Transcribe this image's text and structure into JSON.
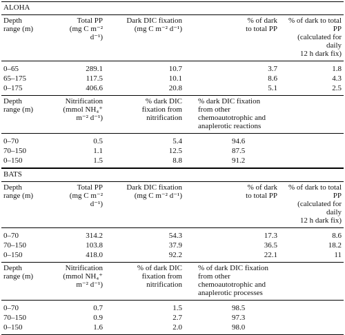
{
  "sections": [
    {
      "title": "ALOHA",
      "tables": [
        {
          "header": [
            "Depth\nrange (m)",
            "Total PP\n(mg C m⁻² d⁻¹)",
            "Dark DIC fixation\n(mg C m⁻² d⁻¹)",
            "% of dark\nto total PP",
            "% of dark to total PP\n(calculated for daily\n12 h dark fix)"
          ],
          "rows": [
            [
              "0–65",
              "289.1",
              "10.7",
              "3.7",
              "1.8"
            ],
            [
              "65–175",
              "117.5",
              "10.1",
              "8.6",
              "4.3"
            ],
            [
              "0–175",
              "406.6",
              "20.8",
              "5.1",
              "2.5"
            ]
          ]
        },
        {
          "header": [
            "Depth\nrange (m)",
            "Nitrification\n(mmol NH₄⁺ m⁻² d⁻¹)",
            "% dark DIC\nfixation from\nnitrification",
            "% dark DIC fixation\nfrom other\nchemoautotrophic and\nanaplerotic reactions"
          ],
          "rows": [
            [
              "0–70",
              "0.5",
              "5.4",
              "94.6"
            ],
            [
              "70–150",
              "1.1",
              "12.5",
              "87.5"
            ],
            [
              "0–150",
              "1.5",
              "8.8",
              "91.2"
            ]
          ]
        }
      ]
    },
    {
      "title": "BATS",
      "tables": [
        {
          "header": [
            "Depth\nrange (m)",
            "Total PP\n(mg C m⁻² d⁻¹)",
            "Dark DIC fixation\n(mg C m⁻² d⁻¹)",
            "% of dark\nto total PP",
            "% of dark to total PP\n(calculated for daily\n12 h dark fix)"
          ],
          "rows": [
            [
              "0–70",
              "314.2",
              "54.3",
              "17.3",
              "8.6"
            ],
            [
              "70–150",
              "103.8",
              "37.9",
              "36.5",
              "18.2"
            ],
            [
              "0–150",
              "418.0",
              "92.2",
              "22.1",
              "11"
            ]
          ]
        },
        {
          "header": [
            "Depth\nrange (m)",
            "Nitrification\n(mmol NH₄⁺ m⁻² d⁻¹)",
            "% of dark DIC\nfixation from\nnitrification",
            "% of dark DIC fixation\nfrom other\nchemoautotrophic and\nanaplerotic processes"
          ],
          "rows": [
            [
              "0–70",
              "0.7",
              "1.5",
              "98.5"
            ],
            [
              "70–150",
              "0.9",
              "2.7",
              "97.3"
            ],
            [
              "0–150",
              "1.6",
              "2.0",
              "98.0"
            ]
          ]
        }
      ]
    }
  ]
}
